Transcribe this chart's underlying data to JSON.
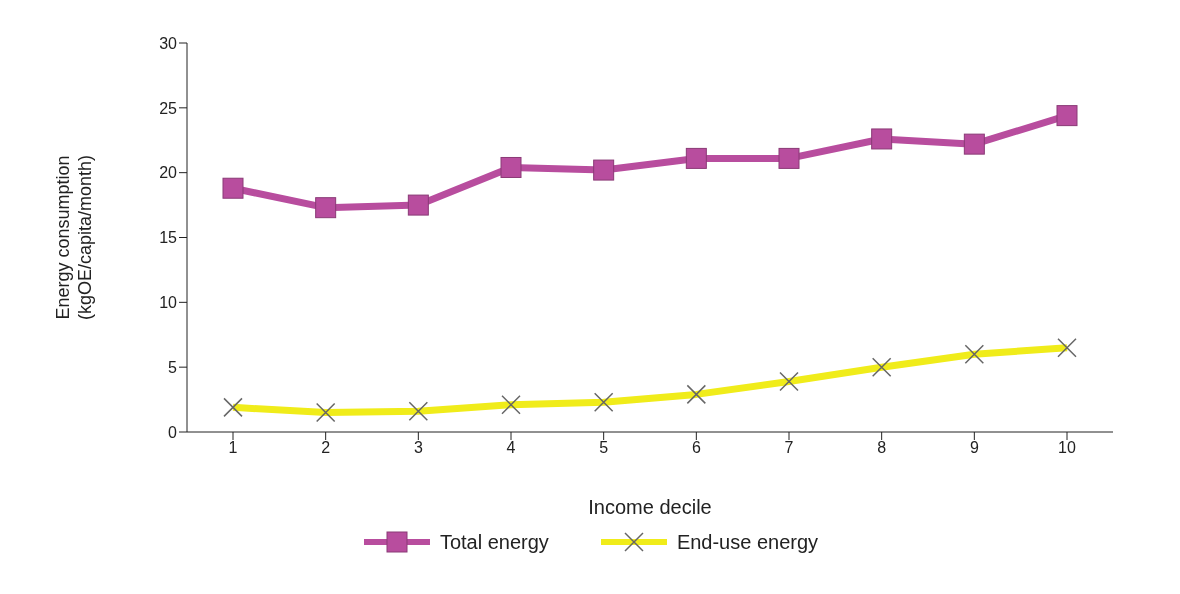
{
  "chart_data": {
    "type": "line",
    "xlabel": "Income decile",
    "ylabel": "Energy consumption (kgOE/capita/month)",
    "categories": [
      "1",
      "2",
      "3",
      "4",
      "5",
      "6",
      "7",
      "8",
      "9",
      "10"
    ],
    "series": [
      {
        "name": "Total energy",
        "color": "#b84d9e",
        "marker": "square",
        "values": [
          18.8,
          17.3,
          17.5,
          20.4,
          20.2,
          21.1,
          21.1,
          22.6,
          22.2,
          24.4
        ]
      },
      {
        "name": "End-use energy",
        "color": "#f0ec1a",
        "marker": "cross",
        "values": [
          1.9,
          1.5,
          1.6,
          2.1,
          2.3,
          2.9,
          3.9,
          5.0,
          6.0,
          6.5
        ]
      }
    ],
    "ylim": [
      0,
      30
    ],
    "yticks": [
      0,
      5,
      10,
      15,
      20,
      25,
      30
    ],
    "grid": false,
    "legend": "bottom",
    "line_style": "solid"
  }
}
